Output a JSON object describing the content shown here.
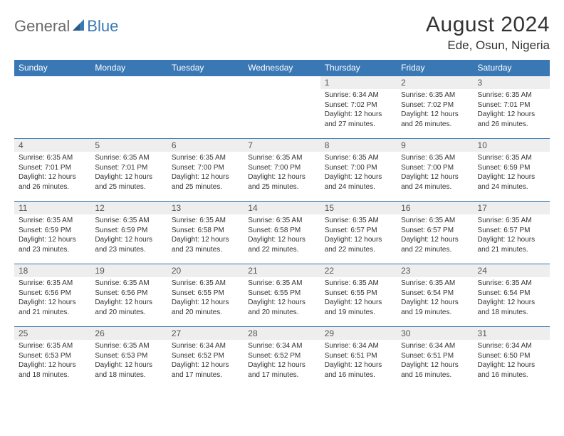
{
  "header": {
    "logo_part1": "General",
    "logo_part2": "Blue",
    "title": "August 2024",
    "location": "Ede, Osun, Nigeria"
  },
  "colors": {
    "header_bar": "#3a78b5",
    "header_text": "#ffffff",
    "daynum_bg": "#eeeeee",
    "border": "#3a78b5",
    "body_text": "#333333",
    "logo_gray": "#6a6a6a",
    "logo_blue": "#3a78b5",
    "page_bg": "#ffffff"
  },
  "day_labels": [
    "Sunday",
    "Monday",
    "Tuesday",
    "Wednesday",
    "Thursday",
    "Friday",
    "Saturday"
  ],
  "weeks": [
    [
      {
        "num": "",
        "sunrise": "",
        "sunset": "",
        "daylight": ""
      },
      {
        "num": "",
        "sunrise": "",
        "sunset": "",
        "daylight": ""
      },
      {
        "num": "",
        "sunrise": "",
        "sunset": "",
        "daylight": ""
      },
      {
        "num": "",
        "sunrise": "",
        "sunset": "",
        "daylight": ""
      },
      {
        "num": "1",
        "sunrise": "Sunrise: 6:34 AM",
        "sunset": "Sunset: 7:02 PM",
        "daylight": "Daylight: 12 hours and 27 minutes."
      },
      {
        "num": "2",
        "sunrise": "Sunrise: 6:35 AM",
        "sunset": "Sunset: 7:02 PM",
        "daylight": "Daylight: 12 hours and 26 minutes."
      },
      {
        "num": "3",
        "sunrise": "Sunrise: 6:35 AM",
        "sunset": "Sunset: 7:01 PM",
        "daylight": "Daylight: 12 hours and 26 minutes."
      }
    ],
    [
      {
        "num": "4",
        "sunrise": "Sunrise: 6:35 AM",
        "sunset": "Sunset: 7:01 PM",
        "daylight": "Daylight: 12 hours and 26 minutes."
      },
      {
        "num": "5",
        "sunrise": "Sunrise: 6:35 AM",
        "sunset": "Sunset: 7:01 PM",
        "daylight": "Daylight: 12 hours and 25 minutes."
      },
      {
        "num": "6",
        "sunrise": "Sunrise: 6:35 AM",
        "sunset": "Sunset: 7:00 PM",
        "daylight": "Daylight: 12 hours and 25 minutes."
      },
      {
        "num": "7",
        "sunrise": "Sunrise: 6:35 AM",
        "sunset": "Sunset: 7:00 PM",
        "daylight": "Daylight: 12 hours and 25 minutes."
      },
      {
        "num": "8",
        "sunrise": "Sunrise: 6:35 AM",
        "sunset": "Sunset: 7:00 PM",
        "daylight": "Daylight: 12 hours and 24 minutes."
      },
      {
        "num": "9",
        "sunrise": "Sunrise: 6:35 AM",
        "sunset": "Sunset: 7:00 PM",
        "daylight": "Daylight: 12 hours and 24 minutes."
      },
      {
        "num": "10",
        "sunrise": "Sunrise: 6:35 AM",
        "sunset": "Sunset: 6:59 PM",
        "daylight": "Daylight: 12 hours and 24 minutes."
      }
    ],
    [
      {
        "num": "11",
        "sunrise": "Sunrise: 6:35 AM",
        "sunset": "Sunset: 6:59 PM",
        "daylight": "Daylight: 12 hours and 23 minutes."
      },
      {
        "num": "12",
        "sunrise": "Sunrise: 6:35 AM",
        "sunset": "Sunset: 6:59 PM",
        "daylight": "Daylight: 12 hours and 23 minutes."
      },
      {
        "num": "13",
        "sunrise": "Sunrise: 6:35 AM",
        "sunset": "Sunset: 6:58 PM",
        "daylight": "Daylight: 12 hours and 23 minutes."
      },
      {
        "num": "14",
        "sunrise": "Sunrise: 6:35 AM",
        "sunset": "Sunset: 6:58 PM",
        "daylight": "Daylight: 12 hours and 22 minutes."
      },
      {
        "num": "15",
        "sunrise": "Sunrise: 6:35 AM",
        "sunset": "Sunset: 6:57 PM",
        "daylight": "Daylight: 12 hours and 22 minutes."
      },
      {
        "num": "16",
        "sunrise": "Sunrise: 6:35 AM",
        "sunset": "Sunset: 6:57 PM",
        "daylight": "Daylight: 12 hours and 22 minutes."
      },
      {
        "num": "17",
        "sunrise": "Sunrise: 6:35 AM",
        "sunset": "Sunset: 6:57 PM",
        "daylight": "Daylight: 12 hours and 21 minutes."
      }
    ],
    [
      {
        "num": "18",
        "sunrise": "Sunrise: 6:35 AM",
        "sunset": "Sunset: 6:56 PM",
        "daylight": "Daylight: 12 hours and 21 minutes."
      },
      {
        "num": "19",
        "sunrise": "Sunrise: 6:35 AM",
        "sunset": "Sunset: 6:56 PM",
        "daylight": "Daylight: 12 hours and 20 minutes."
      },
      {
        "num": "20",
        "sunrise": "Sunrise: 6:35 AM",
        "sunset": "Sunset: 6:55 PM",
        "daylight": "Daylight: 12 hours and 20 minutes."
      },
      {
        "num": "21",
        "sunrise": "Sunrise: 6:35 AM",
        "sunset": "Sunset: 6:55 PM",
        "daylight": "Daylight: 12 hours and 20 minutes."
      },
      {
        "num": "22",
        "sunrise": "Sunrise: 6:35 AM",
        "sunset": "Sunset: 6:55 PM",
        "daylight": "Daylight: 12 hours and 19 minutes."
      },
      {
        "num": "23",
        "sunrise": "Sunrise: 6:35 AM",
        "sunset": "Sunset: 6:54 PM",
        "daylight": "Daylight: 12 hours and 19 minutes."
      },
      {
        "num": "24",
        "sunrise": "Sunrise: 6:35 AM",
        "sunset": "Sunset: 6:54 PM",
        "daylight": "Daylight: 12 hours and 18 minutes."
      }
    ],
    [
      {
        "num": "25",
        "sunrise": "Sunrise: 6:35 AM",
        "sunset": "Sunset: 6:53 PM",
        "daylight": "Daylight: 12 hours and 18 minutes."
      },
      {
        "num": "26",
        "sunrise": "Sunrise: 6:35 AM",
        "sunset": "Sunset: 6:53 PM",
        "daylight": "Daylight: 12 hours and 18 minutes."
      },
      {
        "num": "27",
        "sunrise": "Sunrise: 6:34 AM",
        "sunset": "Sunset: 6:52 PM",
        "daylight": "Daylight: 12 hours and 17 minutes."
      },
      {
        "num": "28",
        "sunrise": "Sunrise: 6:34 AM",
        "sunset": "Sunset: 6:52 PM",
        "daylight": "Daylight: 12 hours and 17 minutes."
      },
      {
        "num": "29",
        "sunrise": "Sunrise: 6:34 AM",
        "sunset": "Sunset: 6:51 PM",
        "daylight": "Daylight: 12 hours and 16 minutes."
      },
      {
        "num": "30",
        "sunrise": "Sunrise: 6:34 AM",
        "sunset": "Sunset: 6:51 PM",
        "daylight": "Daylight: 12 hours and 16 minutes."
      },
      {
        "num": "31",
        "sunrise": "Sunrise: 6:34 AM",
        "sunset": "Sunset: 6:50 PM",
        "daylight": "Daylight: 12 hours and 16 minutes."
      }
    ]
  ]
}
